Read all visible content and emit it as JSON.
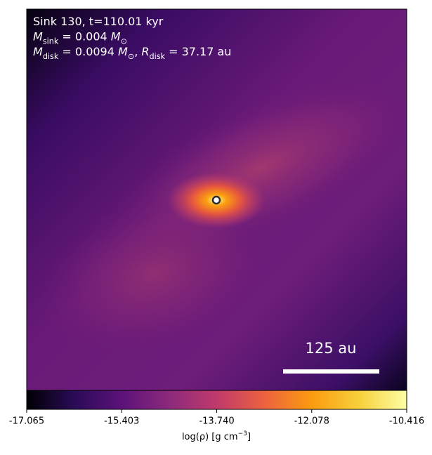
{
  "chart_data": {
    "type": "image",
    "annotation_lines": [
      [
        {
          "t": "Sink 130, t=110.01 kyr"
        }
      ],
      [
        {
          "t": "M",
          "italic": true
        },
        {
          "t": "sink",
          "sub": true
        },
        {
          "t": " = 0.004 "
        },
        {
          "t": "M",
          "italic": true
        },
        {
          "t": "⊙",
          "sub": true
        }
      ],
      [
        {
          "t": "M",
          "italic": true
        },
        {
          "t": "disk",
          "sub": true
        },
        {
          "t": " = 0.0094 "
        },
        {
          "t": "M",
          "italic": true
        },
        {
          "t": "⊙",
          "sub": true
        },
        {
          "t": ", "
        },
        {
          "t": "R",
          "italic": true
        },
        {
          "t": "disk",
          "sub": true
        },
        {
          "t": " = 37.17 au"
        }
      ]
    ],
    "scale_bar_label": "125 au",
    "colorbar": {
      "label": [
        {
          "t": "log(ρ) [g cm"
        },
        {
          "t": "−3",
          "sup": true
        },
        {
          "t": "]"
        }
      ],
      "lim": [
        -17.065,
        -10.416
      ],
      "ticks": [
        -17.065,
        -15.403,
        {
          "value": -13.74,
          "label": "-13.740"
        },
        -12.078,
        -10.416
      ],
      "colormap": [
        "#000004",
        "#2a0b57",
        "#5c1279",
        "#8c2a7d",
        "#c03a6b",
        "#ec6240",
        "#fb9b0f",
        "#f7d03c",
        "#fcffa4"
      ]
    }
  }
}
